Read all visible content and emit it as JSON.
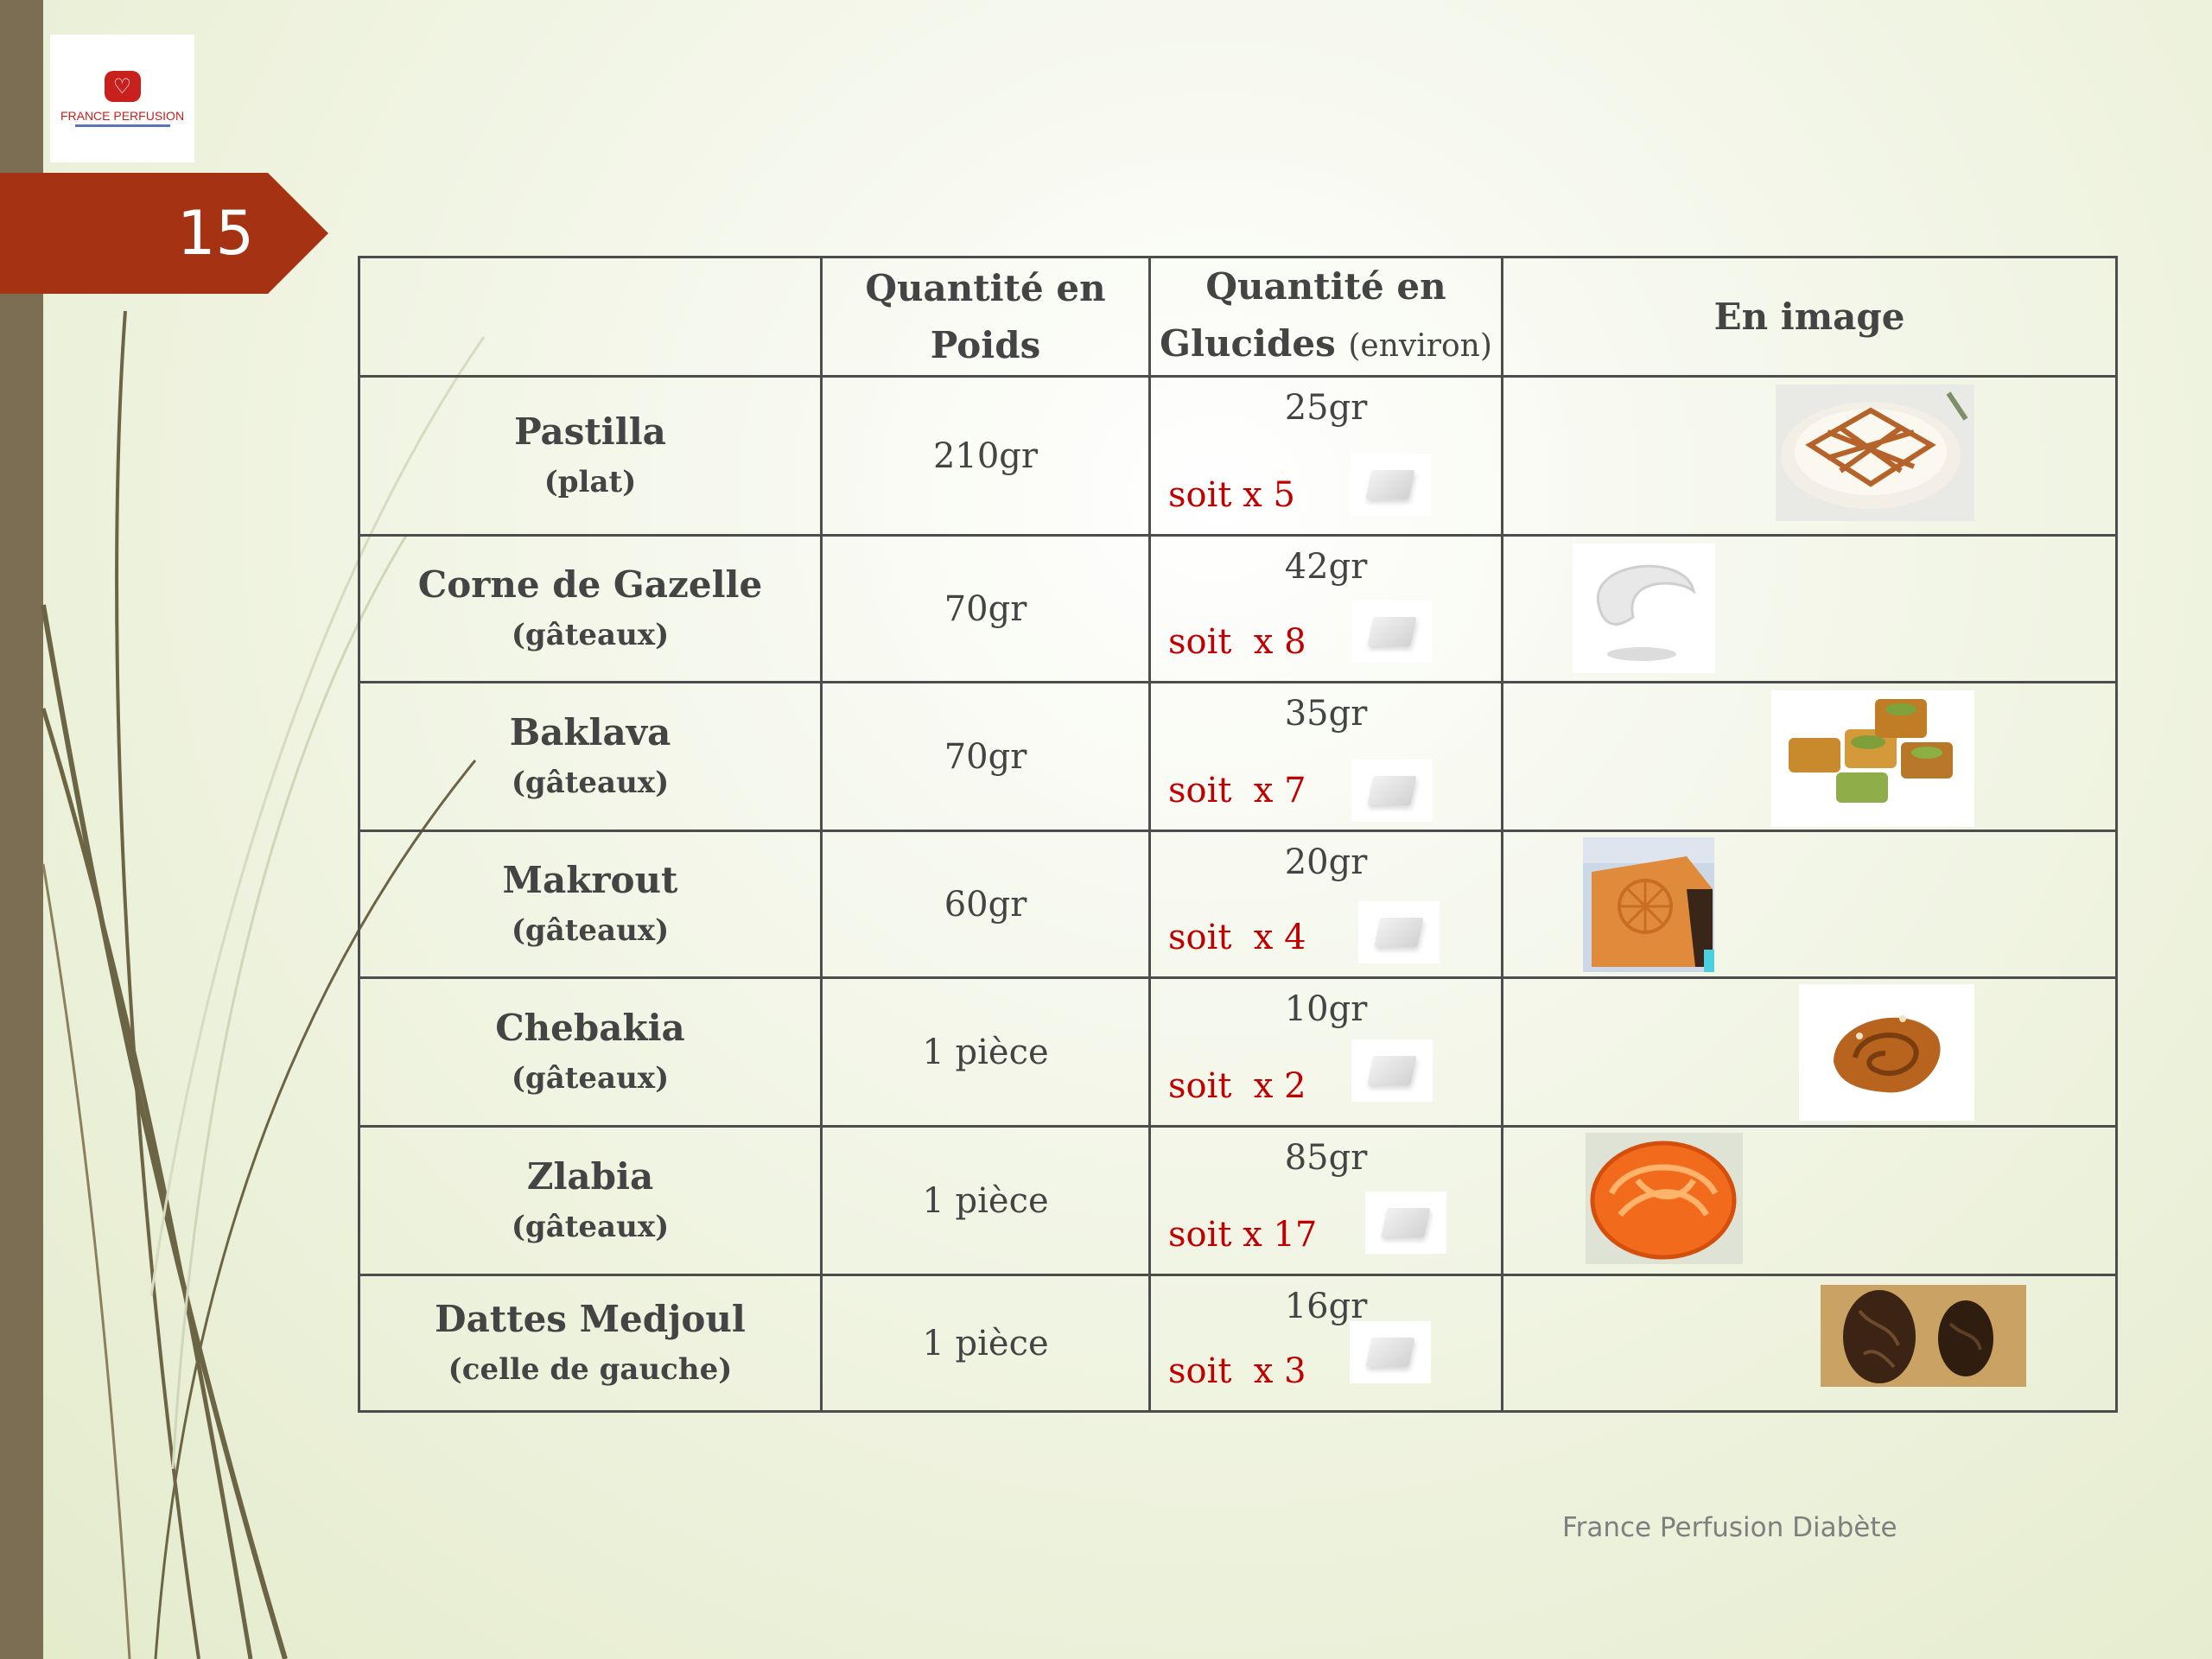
{
  "slide": {
    "number": "15",
    "footer": "France Perfusion Diabète"
  },
  "logo": {
    "text": "FRANCE PERFUSION",
    "icon": "heart-logo-icon"
  },
  "table": {
    "headers": {
      "name": "",
      "poids": "Quantité en Poids",
      "glucides": "Quantité en Glucides",
      "glucides_note": "(environ)",
      "image": "En image"
    },
    "rows": [
      {
        "name": "Pastilla",
        "sub": "(plat)",
        "poids": "210gr",
        "glucides": "25gr",
        "soit": "soit x 5",
        "icon": "pastilla-photo-icon"
      },
      {
        "name": "Corne de Gazelle",
        "sub": "(gâteaux)",
        "poids": "70gr",
        "glucides": "42gr",
        "soit": "soit  x 8",
        "icon": "corne-de-gazelle-photo-icon"
      },
      {
        "name": "Baklava",
        "sub": "(gâteaux)",
        "poids": "70gr",
        "glucides": "35gr",
        "soit": "soit  x 7",
        "icon": "baklava-photo-icon"
      },
      {
        "name": "Makrout",
        "sub": "(gâteaux)",
        "poids": "60gr",
        "glucides": "20gr",
        "soit": "soit  x 4",
        "icon": "makrout-photo-icon"
      },
      {
        "name": "Chebakia",
        "sub": "(gâteaux)",
        "poids": "1 pièce",
        "glucides": "10gr",
        "soit": "soit  x 2",
        "icon": "chebakia-photo-icon"
      },
      {
        "name": "Zlabia",
        "sub": "(gâteaux)",
        "poids": "1 pièce",
        "glucides": "85gr",
        "soit": "soit x 17",
        "icon": "zlabia-photo-icon"
      },
      {
        "name": "Dattes Medjoul",
        "sub": "(celle de gauche)",
        "poids": "1 pièce",
        "glucides": "16gr",
        "soit": "soit  x 3",
        "icon": "dattes-photo-icon"
      }
    ]
  },
  "colors": {
    "accent": "#a63214",
    "sidebar": "#7b6e52",
    "soit_text": "#c00000",
    "text": "#444444"
  }
}
